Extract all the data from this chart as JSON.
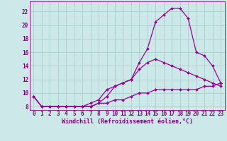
{
  "xlabel": "Windchill (Refroidissement éolien,°C)",
  "x": [
    0,
    1,
    2,
    3,
    4,
    5,
    6,
    7,
    8,
    9,
    10,
    11,
    12,
    13,
    14,
    15,
    16,
    17,
    18,
    19,
    20,
    21,
    22,
    23
  ],
  "line1": [
    9.5,
    8.0,
    8.0,
    8.0,
    8.0,
    8.0,
    8.0,
    8.0,
    8.5,
    9.5,
    11.0,
    11.5,
    12.0,
    14.5,
    16.5,
    20.5,
    21.5,
    22.5,
    22.5,
    21.0,
    16.0,
    15.5,
    14.0,
    11.5
  ],
  "line2": [
    9.5,
    8.0,
    8.0,
    8.0,
    8.0,
    8.0,
    8.0,
    8.5,
    9.0,
    10.5,
    11.0,
    11.5,
    12.0,
    13.5,
    14.5,
    15.0,
    14.5,
    14.0,
    13.5,
    13.0,
    12.5,
    12.0,
    11.5,
    11.0
  ],
  "line3": [
    9.5,
    8.0,
    8.0,
    8.0,
    8.0,
    8.0,
    8.0,
    8.0,
    8.5,
    8.5,
    9.0,
    9.0,
    9.5,
    10.0,
    10.0,
    10.5,
    10.5,
    10.5,
    10.5,
    10.5,
    10.5,
    11.0,
    11.0,
    11.5
  ],
  "line_color": "#990099",
  "bg_color": "#cce8e8",
  "grid_color": "#aacece",
  "text_color": "#800080",
  "ylim": [
    7.5,
    23.5
  ],
  "xlim": [
    -0.5,
    23.5
  ],
  "yticks": [
    8,
    10,
    12,
    14,
    16,
    18,
    20,
    22
  ],
  "xticks": [
    0,
    1,
    2,
    3,
    4,
    5,
    6,
    7,
    8,
    9,
    10,
    11,
    12,
    13,
    14,
    15,
    16,
    17,
    18,
    19,
    20,
    21,
    22,
    23
  ],
  "marker": "D",
  "markersize": 2.0,
  "linewidth": 0.9,
  "tick_fontsize": 5.5,
  "xlabel_fontsize": 6.0
}
